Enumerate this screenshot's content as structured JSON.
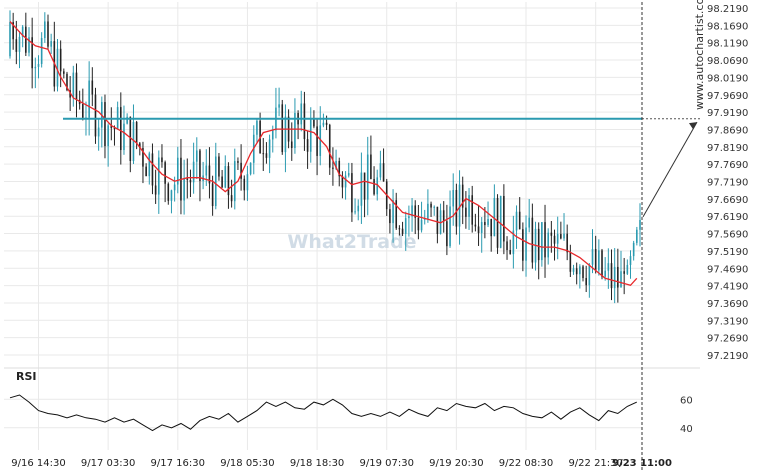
{
  "watermark": "What2Trade",
  "side_brand": "www.autochartist.com",
  "rsi_label": "RSI",
  "colors": {
    "bull_candle": "#2a9ab0",
    "bear_candle": "#222222",
    "moving_average": "#e8282b",
    "level_line": "#2a9ab0",
    "rsi_line": "#111111",
    "grid": "#e9e9e9",
    "watermark": "#c9d7e2"
  },
  "chart_data": [
    {
      "type": "candlestick",
      "series": [
        {
          "name": "",
          "kind": "ohlc"
        },
        {
          "name": "",
          "kind": "moving_average"
        }
      ],
      "y_ticks": [
        "98.2190",
        "98.1690",
        "98.1190",
        "98.0690",
        "98.0190",
        "97.9690",
        "97.9190",
        "97.8690",
        "97.8190",
        "97.7690",
        "97.7190",
        "97.6690",
        "97.6190",
        "97.5690",
        "97.5190",
        "97.4690",
        "97.4190",
        "97.3690",
        "97.3190",
        "97.2690",
        "97.2190"
      ],
      "ylim": [
        97.219,
        98.219
      ],
      "x_ticks": [
        "9/16 14:30",
        "9/17 03:30",
        "9/17 16:30",
        "9/18 05:30",
        "9/18 18:30",
        "9/19 07:30",
        "9/19 20:30",
        "9/22 08:30",
        "9/22 21:30",
        "9/23 11:00"
      ],
      "horizontal_level": 97.9,
      "ma_points": [
        [
          0,
          98.18
        ],
        [
          4,
          98.14
        ],
        [
          8,
          98.11
        ],
        [
          12,
          98.1
        ],
        [
          16,
          98.02
        ],
        [
          20,
          97.96
        ],
        [
          24,
          97.94
        ],
        [
          28,
          97.92
        ],
        [
          32,
          97.88
        ],
        [
          36,
          97.86
        ],
        [
          40,
          97.83
        ],
        [
          44,
          97.78
        ],
        [
          48,
          97.74
        ],
        [
          52,
          97.72
        ],
        [
          56,
          97.73
        ],
        [
          60,
          97.73
        ],
        [
          64,
          97.72
        ],
        [
          68,
          97.69
        ],
        [
          72,
          97.72
        ],
        [
          76,
          97.8
        ],
        [
          80,
          97.86
        ],
        [
          84,
          97.87
        ],
        [
          88,
          97.87
        ],
        [
          92,
          97.87
        ],
        [
          96,
          97.86
        ],
        [
          100,
          97.82
        ],
        [
          104,
          97.74
        ],
        [
          108,
          97.71
        ],
        [
          112,
          97.72
        ],
        [
          116,
          97.71
        ],
        [
          120,
          97.67
        ],
        [
          124,
          97.63
        ],
        [
          128,
          97.62
        ],
        [
          132,
          97.61
        ],
        [
          136,
          97.6
        ],
        [
          140,
          97.62
        ],
        [
          144,
          97.67
        ],
        [
          148,
          97.65
        ],
        [
          152,
          97.62
        ],
        [
          156,
          97.59
        ],
        [
          160,
          97.56
        ],
        [
          164,
          97.54
        ],
        [
          168,
          97.53
        ],
        [
          172,
          97.53
        ],
        [
          176,
          97.52
        ],
        [
          180,
          97.5
        ],
        [
          184,
          97.47
        ],
        [
          188,
          97.44
        ],
        [
          192,
          97.43
        ],
        [
          196,
          97.42
        ],
        [
          198,
          97.44
        ]
      ],
      "projection_target": 97.89
    },
    {
      "type": "line",
      "title": "RSI",
      "y_ticks": [
        "60",
        "40"
      ],
      "ylim": [
        30,
        70
      ],
      "rsi_points": [
        [
          0,
          61
        ],
        [
          3,
          63
        ],
        [
          6,
          58
        ],
        [
          9,
          52
        ],
        [
          12,
          50
        ],
        [
          15,
          49
        ],
        [
          18,
          47
        ],
        [
          21,
          49
        ],
        [
          24,
          47
        ],
        [
          27,
          46
        ],
        [
          30,
          44
        ],
        [
          33,
          47
        ],
        [
          36,
          44
        ],
        [
          39,
          46
        ],
        [
          42,
          42
        ],
        [
          45,
          38
        ],
        [
          48,
          42
        ],
        [
          51,
          40
        ],
        [
          54,
          43
        ],
        [
          57,
          39
        ],
        [
          60,
          45
        ],
        [
          63,
          48
        ],
        [
          66,
          46
        ],
        [
          69,
          50
        ],
        [
          72,
          44
        ],
        [
          75,
          48
        ],
        [
          78,
          52
        ],
        [
          81,
          58
        ],
        [
          84,
          55
        ],
        [
          87,
          58
        ],
        [
          90,
          54
        ],
        [
          93,
          53
        ],
        [
          96,
          58
        ],
        [
          99,
          56
        ],
        [
          102,
          60
        ],
        [
          105,
          56
        ],
        [
          108,
          50
        ],
        [
          111,
          48
        ],
        [
          114,
          50
        ],
        [
          117,
          48
        ],
        [
          120,
          51
        ],
        [
          123,
          48
        ],
        [
          126,
          53
        ],
        [
          129,
          50
        ],
        [
          132,
          48
        ],
        [
          135,
          54
        ],
        [
          138,
          52
        ],
        [
          141,
          57
        ],
        [
          144,
          55
        ],
        [
          147,
          54
        ],
        [
          150,
          57
        ],
        [
          153,
          52
        ],
        [
          156,
          55
        ],
        [
          159,
          54
        ],
        [
          162,
          50
        ],
        [
          165,
          48
        ],
        [
          168,
          47
        ],
        [
          171,
          51
        ],
        [
          174,
          46
        ],
        [
          177,
          51
        ],
        [
          180,
          54
        ],
        [
          183,
          49
        ],
        [
          186,
          45
        ],
        [
          189,
          52
        ],
        [
          192,
          50
        ],
        [
          195,
          55
        ],
        [
          198,
          58
        ]
      ]
    }
  ]
}
